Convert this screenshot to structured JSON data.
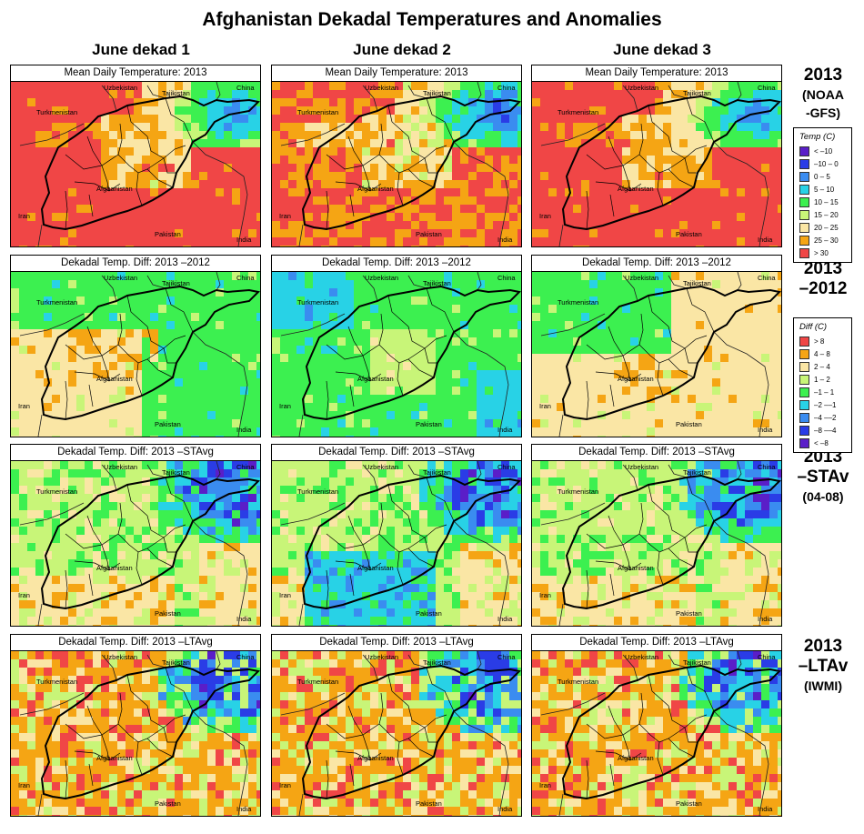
{
  "title": "Afghanistan Dekadal Temperatures and Anomalies",
  "columns": [
    "June dekad 1",
    "June dekad 2",
    "June dekad 3"
  ],
  "rows": [
    {
      "label_lines": [
        "2013",
        "(NOAA",
        "-GFS)"
      ],
      "panel_title": "Mean Daily Temperature: 2013"
    },
    {
      "label_lines": [
        "2013",
        "–2012"
      ],
      "panel_title": "Dekadal Temp. Diff:  2013 –2012"
    },
    {
      "label_lines": [
        "2013",
        "–STAv",
        "(04-08)"
      ],
      "panel_title": "Dekadal Temp. Diff:  2013 –STAvg"
    },
    {
      "label_lines": [
        "2013",
        "–LTAv",
        "(IWMI)"
      ],
      "panel_title": "Dekadal Temp. Diff:  2013 –LTAvg"
    }
  ],
  "map_labels": {
    "uzbekistan": "Uzbekistan",
    "tajikistan": "Tajikistan",
    "china": "China",
    "turkmenistan": "Turkmenistan",
    "afghanistan": "Afghanistan",
    "iran": "Iran",
    "pakistan": "Pakistan",
    "india": "India"
  },
  "legend_temp": {
    "title": "Temp (C)",
    "items": [
      {
        "label": "< –10",
        "color": "#5a1ec8"
      },
      {
        "label": "–10 –  0",
        "color": "#2a3ce6"
      },
      {
        "label": "0 –  5",
        "color": "#3a8cf0"
      },
      {
        "label": "5 – 10",
        "color": "#28d2e6"
      },
      {
        "label": "10 – 15",
        "color": "#3cf050"
      },
      {
        "label": "15 – 20",
        "color": "#c8f578"
      },
      {
        "label": "20 – 25",
        "color": "#fae6a5"
      },
      {
        "label": "25 – 30",
        "color": "#f5a514"
      },
      {
        "label": "> 30",
        "color": "#f04646"
      }
    ]
  },
  "legend_diff": {
    "title": "Diff (C)",
    "items": [
      {
        "label": "> 8",
        "color": "#f04646"
      },
      {
        "label": "4 –  8",
        "color": "#f5a514"
      },
      {
        "label": "2 –  4",
        "color": "#fae6a5"
      },
      {
        "label": "1 –  2",
        "color": "#c8f578"
      },
      {
        "label": "–1 –  1",
        "color": "#3cf050"
      },
      {
        "label": "–2 ––1",
        "color": "#28d2e6"
      },
      {
        "label": "–4 ––2",
        "color": "#3a8cf0"
      },
      {
        "label": "–8 ––4",
        "color": "#2a3ce6"
      },
      {
        "label": "< –8",
        "color": "#5a1ec8"
      }
    ]
  }
}
